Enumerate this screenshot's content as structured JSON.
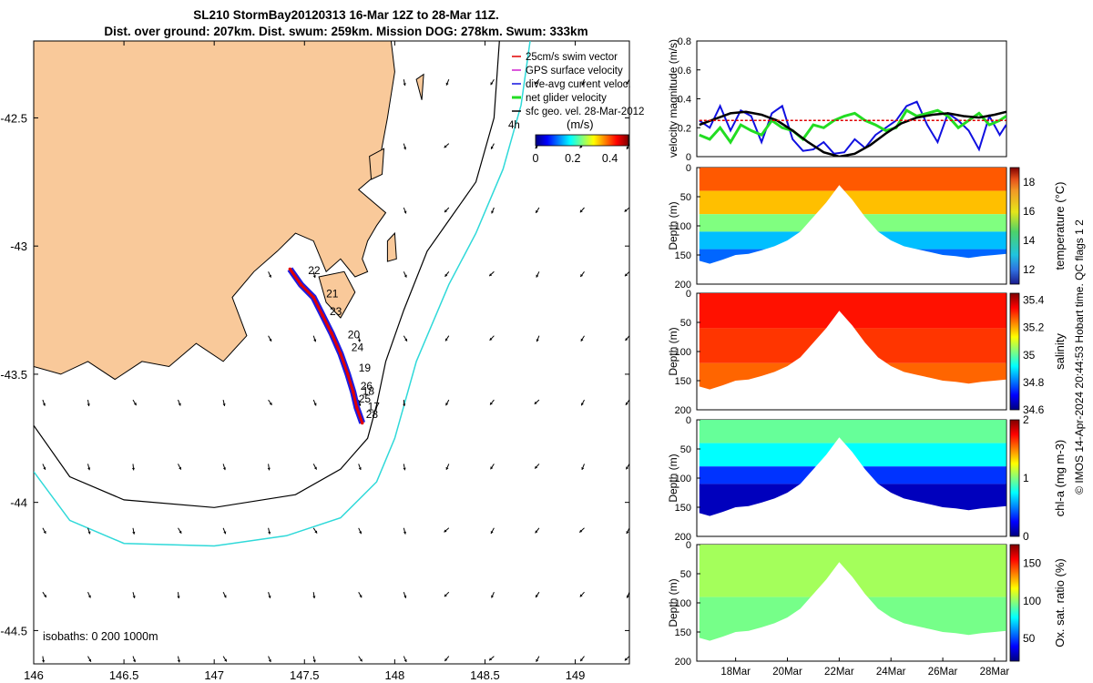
{
  "colors": {
    "land": "#f9c99a",
    "isobath_200": "#000000",
    "isobath_1000": "#2fd9d9",
    "track": "#e00000",
    "dive_avg": "#1010e0",
    "net_glider": "#22dd22",
    "tide_line": "#000000"
  },
  "chart_data": [
    {
      "id": "map",
      "type": "map",
      "title_line1": "SL210 StormBay20120313 16-Mar 12Z to 28-Mar 11Z.",
      "title_line2": "Dist. over ground: 207km. Dist. swum: 259km. Mission DOG: 278km. Swum: 333km",
      "xlim": [
        146,
        149.3
      ],
      "ylim": [
        -44.63,
        -42.2
      ],
      "xticks": [
        146,
        146.5,
        147,
        147.5,
        148,
        148.5,
        149
      ],
      "xtick_labels": [
        "146",
        "146.5",
        "147",
        "147.5",
        "148",
        "148.5",
        "149"
      ],
      "yticks": [
        -42.5,
        -43,
        -43.5,
        -44,
        -44.5
      ],
      "ytick_labels": [
        "-42.5",
        "-43",
        "-43.5",
        "-44",
        "-44.5"
      ],
      "legend": [
        "25cm/s swim vector",
        "GPS surface velocity",
        "dive-avg current veloc.",
        "net glider velocity",
        "sfc geo. vel. 28-Mar-2012"
      ],
      "speed_colorbar": {
        "label": "(m/s)",
        "ticks": [
          0,
          0.2,
          0.4
        ],
        "tick_labels": [
          "0",
          "0.2",
          "0.4"
        ],
        "range": [
          0,
          0.5
        ]
      },
      "annotation_4h": "4h",
      "isobaths_text": "isobaths: 0   200  1000m",
      "day_labels": [
        {
          "text": "22",
          "lon": 147.52,
          "lat": -43.11
        },
        {
          "text": "21",
          "lon": 147.62,
          "lat": -43.2
        },
        {
          "text": "23",
          "lon": 147.64,
          "lat": -43.27
        },
        {
          "text": "20",
          "lon": 147.74,
          "lat": -43.36
        },
        {
          "text": "24",
          "lon": 147.76,
          "lat": -43.41
        },
        {
          "text": "19",
          "lon": 147.8,
          "lat": -43.49
        },
        {
          "text": "26",
          "lon": 147.81,
          "lat": -43.56
        },
        {
          "text": "18",
          "lon": 147.82,
          "lat": -43.58
        },
        {
          "text": "25",
          "lon": 147.8,
          "lat": -43.61
        },
        {
          "text": "17",
          "lon": 147.85,
          "lat": -43.64
        },
        {
          "text": "28",
          "lon": 147.84,
          "lat": -43.67
        }
      ],
      "glider_track": [
        [
          147.42,
          -43.09
        ],
        [
          147.48,
          -43.15
        ],
        [
          147.55,
          -43.2
        ],
        [
          147.6,
          -43.27
        ],
        [
          147.65,
          -43.34
        ],
        [
          147.7,
          -43.42
        ],
        [
          147.74,
          -43.5
        ],
        [
          147.77,
          -43.57
        ],
        [
          147.79,
          -43.63
        ],
        [
          147.82,
          -43.69
        ]
      ],
      "isobath_200m": [
        [
          148.58,
          -42.2
        ],
        [
          148.55,
          -42.5
        ],
        [
          148.45,
          -42.75
        ],
        [
          148.3,
          -42.9
        ],
        [
          148.18,
          -43.02
        ],
        [
          148.05,
          -43.25
        ],
        [
          147.95,
          -43.45
        ],
        [
          147.9,
          -43.62
        ],
        [
          147.85,
          -43.75
        ],
        [
          147.7,
          -43.87
        ],
        [
          147.45,
          -43.97
        ],
        [
          147.0,
          -44.02
        ],
        [
          146.5,
          -43.99
        ],
        [
          146.2,
          -43.9
        ],
        [
          146.0,
          -43.7
        ]
      ],
      "isobath_1000m": [
        [
          148.75,
          -42.2
        ],
        [
          148.7,
          -42.45
        ],
        [
          148.6,
          -42.7
        ],
        [
          148.45,
          -42.95
        ],
        [
          148.3,
          -43.15
        ],
        [
          148.12,
          -43.45
        ],
        [
          148.0,
          -43.75
        ],
        [
          147.9,
          -43.92
        ],
        [
          147.7,
          -44.06
        ],
        [
          147.4,
          -44.13
        ],
        [
          147.0,
          -44.17
        ],
        [
          146.5,
          -44.16
        ],
        [
          146.2,
          -44.07
        ],
        [
          146.0,
          -43.88
        ]
      ],
      "coastline": [
        [
          146.0,
          -42.2
        ],
        [
          147.98,
          -42.2
        ],
        [
          148.0,
          -42.32
        ],
        [
          147.96,
          -42.5
        ],
        [
          147.92,
          -42.65
        ],
        [
          147.9,
          -42.72
        ],
        [
          147.8,
          -42.78
        ],
        [
          147.95,
          -42.87
        ],
        [
          147.9,
          -42.92
        ],
        [
          147.85,
          -42.98
        ],
        [
          147.82,
          -43.05
        ],
        [
          147.85,
          -43.1
        ],
        [
          147.78,
          -43.12
        ],
        [
          147.7,
          -43.05
        ],
        [
          147.62,
          -43.1
        ],
        [
          147.55,
          -42.98
        ],
        [
          147.45,
          -42.95
        ],
        [
          147.35,
          -43.02
        ],
        [
          147.22,
          -43.1
        ],
        [
          147.1,
          -43.2
        ],
        [
          147.18,
          -43.35
        ],
        [
          147.05,
          -43.45
        ],
        [
          146.9,
          -43.38
        ],
        [
          146.75,
          -43.47
        ],
        [
          146.6,
          -43.45
        ],
        [
          146.45,
          -43.52
        ],
        [
          146.3,
          -43.45
        ],
        [
          146.15,
          -43.5
        ],
        [
          146.0,
          -43.47
        ]
      ],
      "islands": [
        [
          [
            147.58,
            -43.12
          ],
          [
            147.72,
            -43.1
          ],
          [
            147.78,
            -43.18
          ],
          [
            147.7,
            -43.28
          ],
          [
            147.62,
            -43.22
          ]
        ],
        [
          [
            147.86,
            -42.65
          ],
          [
            147.94,
            -42.62
          ],
          [
            147.93,
            -42.72
          ],
          [
            147.87,
            -42.74
          ]
        ],
        [
          [
            147.96,
            -42.98
          ],
          [
            148.0,
            -42.95
          ],
          [
            148.01,
            -43.05
          ],
          [
            147.96,
            -43.06
          ]
        ],
        [
          [
            148.12,
            -42.35
          ],
          [
            148.16,
            -42.33
          ],
          [
            148.15,
            -42.43
          ]
        ]
      ]
    },
    {
      "id": "velocity",
      "type": "line",
      "ylabel": "velocity magnitude (m/s)",
      "ylim": [
        0,
        0.8
      ],
      "yticks": [
        0,
        0.2,
        0.4,
        0.6,
        0.8
      ],
      "ytick_labels": [
        "0",
        "0.2",
        "0.4",
        "0.6",
        "0.8"
      ],
      "xlim": [
        16.5,
        28.46
      ],
      "series": [
        {
          "name": "dive-avg current veloc.",
          "x": [
            16.6,
            17.0,
            17.4,
            17.8,
            18.2,
            18.6,
            19.0,
            19.4,
            19.8,
            20.2,
            20.6,
            21.0,
            21.4,
            21.8,
            22.2,
            22.6,
            23.0,
            23.4,
            23.8,
            24.2,
            24.6,
            25.0,
            25.4,
            25.8,
            26.2,
            26.6,
            27.0,
            27.4,
            27.8,
            28.2,
            28.45
          ],
          "values": [
            0.25,
            0.2,
            0.35,
            0.18,
            0.32,
            0.28,
            0.1,
            0.3,
            0.35,
            0.12,
            0.04,
            0.05,
            0.1,
            0.02,
            0.03,
            0.12,
            0.06,
            0.15,
            0.2,
            0.25,
            0.35,
            0.38,
            0.22,
            0.1,
            0.3,
            0.25,
            0.18,
            0.05,
            0.28,
            0.15,
            0.22
          ]
        },
        {
          "name": "net glider velocity",
          "x": [
            16.6,
            17.0,
            17.4,
            17.8,
            18.2,
            18.6,
            19.0,
            19.4,
            19.8,
            20.2,
            20.6,
            21.0,
            21.4,
            21.8,
            22.2,
            22.6,
            23.0,
            23.4,
            23.8,
            24.2,
            24.6,
            25.0,
            25.4,
            25.8,
            26.2,
            26.6,
            27.0,
            27.4,
            27.8,
            28.2,
            28.45
          ],
          "values": [
            0.15,
            0.12,
            0.2,
            0.1,
            0.22,
            0.18,
            0.15,
            0.25,
            0.2,
            0.18,
            0.12,
            0.22,
            0.2,
            0.25,
            0.28,
            0.3,
            0.25,
            0.22,
            0.18,
            0.2,
            0.32,
            0.28,
            0.3,
            0.32,
            0.28,
            0.2,
            0.25,
            0.3,
            0.22,
            0.25,
            0.28
          ]
        },
        {
          "name": "tide",
          "x": [
            16.6,
            17.2,
            17.8,
            18.4,
            19.0,
            19.6,
            20.2,
            20.8,
            21.4,
            22.0,
            22.6,
            23.2,
            23.8,
            24.4,
            25.0,
            25.6,
            26.2,
            26.8,
            27.4,
            28.0,
            28.45
          ],
          "values": [
            0.22,
            0.26,
            0.3,
            0.31,
            0.29,
            0.25,
            0.18,
            0.1,
            0.03,
            0.0,
            0.02,
            0.08,
            0.16,
            0.23,
            0.27,
            0.29,
            0.3,
            0.28,
            0.27,
            0.29,
            0.31
          ]
        },
        {
          "name": "swim",
          "x": [
            16.6,
            28.45
          ],
          "values": [
            0.25,
            0.25
          ]
        }
      ]
    },
    {
      "id": "temperature",
      "type": "heatmap",
      "ylabel": "Depth (m)",
      "clabel": "temperature (°C)",
      "ylim": [
        0,
        200
      ],
      "yticks": [
        0,
        50,
        100,
        150,
        200
      ],
      "ytick_labels": [
        "0",
        "50",
        "100",
        "150",
        "200"
      ],
      "clim": [
        11,
        19
      ],
      "cticks": [
        12,
        14,
        16,
        18
      ],
      "ctick_labels": [
        "12",
        "14",
        "16",
        "18"
      ],
      "bands": [
        {
          "depth": [
            0,
            40
          ],
          "value": 17.3
        },
        {
          "depth": [
            40,
            80
          ],
          "value": 16.5
        },
        {
          "depth": [
            80,
            110
          ],
          "value": 15.0
        },
        {
          "depth": [
            110,
            140
          ],
          "value": 13.5
        },
        {
          "depth": [
            140,
            180
          ],
          "value": 12.8
        }
      ]
    },
    {
      "id": "salinity",
      "type": "heatmap",
      "ylabel": "Depth (m)",
      "clabel": "salinity",
      "ylim": [
        0,
        200
      ],
      "yticks": [
        0,
        50,
        100,
        150,
        200
      ],
      "ytick_labels": [
        "0",
        "50",
        "100",
        "150",
        "200"
      ],
      "clim": [
        34.6,
        35.45
      ],
      "cticks": [
        34.6,
        34.8,
        35,
        35.2,
        35.4
      ],
      "ctick_labels": [
        "34.6",
        "34.8",
        "35",
        "35.2",
        "35.4"
      ],
      "bands": [
        {
          "depth": [
            0,
            60
          ],
          "value": 35.33
        },
        {
          "depth": [
            60,
            120
          ],
          "value": 35.3
        },
        {
          "depth": [
            120,
            180
          ],
          "value": 35.26
        }
      ]
    },
    {
      "id": "chla",
      "type": "heatmap",
      "ylabel": "Depth (m)",
      "clabel": "chl-a (mg m-3)",
      "ylim": [
        0,
        200
      ],
      "yticks": [
        0,
        50,
        100,
        150,
        200
      ],
      "ytick_labels": [
        "0",
        "50",
        "100",
        "150",
        "200"
      ],
      "clim": [
        0,
        2
      ],
      "cticks": [
        0,
        1,
        2
      ],
      "ctick_labels": [
        "0",
        "1",
        "2"
      ],
      "bands": [
        {
          "depth": [
            0,
            40
          ],
          "value": 0.95
        },
        {
          "depth": [
            40,
            80
          ],
          "value": 0.75
        },
        {
          "depth": [
            80,
            110
          ],
          "value": 0.35
        },
        {
          "depth": [
            110,
            180
          ],
          "value": 0.12
        }
      ]
    },
    {
      "id": "oxsat",
      "type": "heatmap",
      "ylabel": "Depth (m)",
      "clabel": "Ox. sat. ratio (%)",
      "ylim": [
        0,
        200
      ],
      "yticks": [
        0,
        50,
        100,
        150,
        200
      ],
      "ytick_labels": [
        "0",
        "50",
        "100",
        "150",
        "200"
      ],
      "clim": [
        20,
        175
      ],
      "cticks": [
        50,
        100,
        150
      ],
      "ctick_labels": [
        "50",
        "100",
        "150"
      ],
      "xticks": [
        18,
        20,
        22,
        24,
        26,
        28
      ],
      "xtick_labels": [
        "18Mar",
        "20Mar",
        "22Mar",
        "24Mar",
        "26Mar",
        "28Mar"
      ],
      "bands": [
        {
          "depth": [
            0,
            90
          ],
          "value": 103
        },
        {
          "depth": [
            90,
            180
          ],
          "value": 96
        }
      ]
    }
  ],
  "section_bottom_depth": {
    "x": [
      16.6,
      17.0,
      17.5,
      18.0,
      18.5,
      19.0,
      19.5,
      20.0,
      20.5,
      21.0,
      21.5,
      22.0,
      22.5,
      23.0,
      23.5,
      24.0,
      24.5,
      25.0,
      25.5,
      26.0,
      26.5,
      27.0,
      27.5,
      28.0,
      28.45
    ],
    "depth": [
      160,
      165,
      158,
      150,
      148,
      142,
      135,
      125,
      110,
      85,
      60,
      30,
      55,
      85,
      110,
      125,
      135,
      140,
      145,
      150,
      152,
      155,
      152,
      150,
      148
    ]
  },
  "side_label": "© IMOS 14-Apr-2024 20:44:53 Hobart time. QC flags 1  2"
}
